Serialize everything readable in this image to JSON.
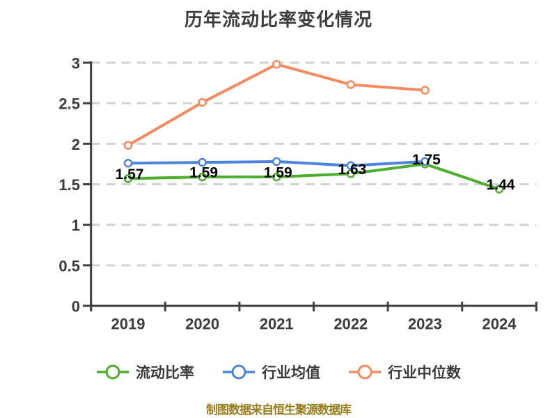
{
  "title": "历年流动比率变化情况",
  "footer": {
    "text": "制图数据来自恒生聚源数据库",
    "color": "#9a7d1a"
  },
  "chart_data": {
    "type": "line",
    "title": "历年流动比率变化情况",
    "categories": [
      "2019",
      "2020",
      "2021",
      "2022",
      "2023",
      "2024"
    ],
    "series": [
      {
        "name": "流动比率",
        "color": "#4cae2c",
        "values": [
          1.57,
          1.59,
          1.59,
          1.63,
          1.75,
          1.44
        ],
        "data_labels": [
          "1.57",
          "1.59",
          "1.59",
          "1.63",
          "1.75",
          "1.44"
        ]
      },
      {
        "name": "行业均值",
        "color": "#4c84db",
        "values": [
          1.76,
          1.77,
          1.78,
          1.73,
          1.78,
          null
        ],
        "data_labels": null
      },
      {
        "name": "行业中位数",
        "color": "#f78a5e",
        "values": [
          1.98,
          2.51,
          2.98,
          2.73,
          2.66,
          null
        ],
        "data_labels": null
      }
    ],
    "ylim": [
      0,
      3
    ],
    "ytick_step": 0.5,
    "ytick_labels": [
      "0",
      "0.5",
      "1",
      "1.5",
      "2",
      "2.5",
      "3"
    ],
    "xlabel": "",
    "ylabel": "",
    "grid": "horizontal-dashed",
    "legend_position": "bottom",
    "marker": "circle-white-fill",
    "colors": {
      "axis": "#3f3f3f",
      "grid": "#d2d2d2",
      "tick_label": "#3c3c3c",
      "data_label": "#000000",
      "title": "#3d3d3d"
    }
  }
}
